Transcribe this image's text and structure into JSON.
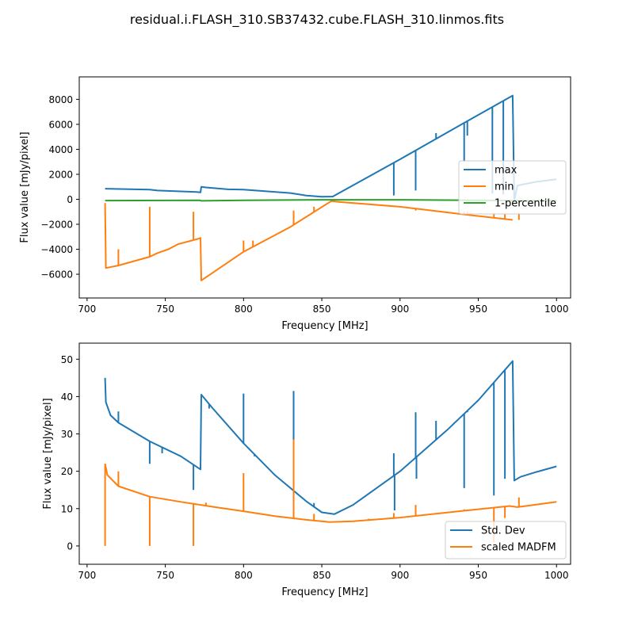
{
  "figure": {
    "title": "residual.i.FLASH_310.SB37432.cube.FLASH_310.linmos.fits"
  },
  "colors": {
    "blue": "#1f77b4",
    "orange": "#ff7f0e",
    "green": "#2ca02c"
  },
  "chart_data": [
    {
      "type": "line",
      "xlabel": "Frequency [MHz]",
      "ylabel": "Flux value [mJy/pixel]",
      "xlim": [
        695,
        1009
      ],
      "ylim": [
        -7900,
        9800
      ],
      "xticks": [
        700,
        750,
        800,
        850,
        900,
        950,
        1000
      ],
      "yticks": [
        -6000,
        -4000,
        -2000,
        0,
        2000,
        4000,
        6000,
        8000
      ],
      "legend": "center-right",
      "series": [
        {
          "name": "max",
          "color": "#1f77b4",
          "points": [
            [
              711.5,
              850
            ],
            [
              740,
              780
            ],
            [
              745,
              700
            ],
            [
              770,
              580
            ],
            [
              772.5,
              550
            ],
            [
              773,
              1000
            ],
            [
              776,
              950
            ],
            [
              790,
              800
            ],
            [
              800,
              780
            ],
            [
              830,
              500
            ],
            [
              840,
              300
            ],
            [
              850,
              200
            ],
            [
              857,
              220
            ],
            [
              900,
              3200
            ],
            [
              940,
              6050
            ],
            [
              972,
              8300
            ],
            [
              973,
              -100
            ],
            [
              975,
              1100
            ],
            [
              987,
              1400
            ],
            [
              1000,
              1600
            ]
          ],
          "spikes": [
            [
              896,
              300
            ],
            [
              910,
              700
            ],
            [
              923,
              5300
            ],
            [
              941,
              3000
            ],
            [
              943,
              5100
            ],
            [
              959,
              450
            ],
            [
              966,
              400
            ]
          ]
        },
        {
          "name": "min",
          "color": "#ff7f0e",
          "points": [
            [
              711.5,
              -300
            ],
            [
              712,
              -5500
            ],
            [
              720,
              -5300
            ],
            [
              740,
              -4600
            ],
            [
              745,
              -4300
            ],
            [
              752,
              -4000
            ],
            [
              758,
              -3600
            ],
            [
              770,
              -3200
            ],
            [
              772.5,
              -3100
            ],
            [
              773,
              -6500
            ],
            [
              800,
              -4200
            ],
            [
              830,
              -2200
            ],
            [
              856,
              -150
            ],
            [
              860,
              -200
            ],
            [
              900,
              -600
            ],
            [
              940,
              -1200
            ],
            [
              972,
              -1650
            ]
          ],
          "spikes": [
            [
              720,
              -4000
            ],
            [
              740,
              -600
            ],
            [
              768,
              -1000
            ],
            [
              800,
              -3300
            ],
            [
              806,
              -3300
            ],
            [
              832,
              -900
            ],
            [
              845,
              -600
            ],
            [
              896,
              -600
            ],
            [
              910,
              -900
            ],
            [
              941,
              -1000
            ],
            [
              943,
              -1000
            ],
            [
              960,
              -1100
            ],
            [
              967,
              -1200
            ],
            [
              976,
              -1100
            ]
          ]
        },
        {
          "name": "1-percentile",
          "color": "#2ca02c",
          "points": [
            [
              711.5,
              -100
            ],
            [
              772,
              -80
            ],
            [
              773,
              -120
            ],
            [
              800,
              -80
            ],
            [
              850,
              -40
            ],
            [
              900,
              -40
            ],
            [
              972,
              -100
            ],
            [
              1000,
              -110
            ]
          ],
          "spikes": []
        }
      ]
    },
    {
      "type": "line",
      "xlabel": "Frequency [MHz]",
      "ylabel": "Flux value [mJy/pixel]",
      "xlim": [
        695,
        1009
      ],
      "ylim": [
        -4.9,
        54.3
      ],
      "xticks": [
        700,
        750,
        800,
        850,
        900,
        950,
        1000
      ],
      "yticks": [
        0,
        10,
        20,
        30,
        40,
        50
      ],
      "legend": "bottom-right",
      "series": [
        {
          "name": "Std. Dev",
          "color": "#1f77b4",
          "points": [
            [
              711.5,
              45
            ],
            [
              712,
              38.5
            ],
            [
              715,
              35
            ],
            [
              720,
              33
            ],
            [
              740,
              28
            ],
            [
              760,
              24
            ],
            [
              772.5,
              20.5
            ],
            [
              773,
              40.5
            ],
            [
              780,
              37
            ],
            [
              800,
              27.5
            ],
            [
              820,
              19
            ],
            [
              840,
              12
            ],
            [
              850,
              9
            ],
            [
              858,
              8.5
            ],
            [
              870,
              11
            ],
            [
              900,
              20
            ],
            [
              930,
              31
            ],
            [
              950,
              39
            ],
            [
              972,
              49.5
            ],
            [
              973,
              17.5
            ],
            [
              977,
              18.5
            ],
            [
              987,
              19.8
            ],
            [
              1000,
              21.3
            ]
          ],
          "spikes": [
            [
              720,
              36
            ],
            [
              740,
              22
            ],
            [
              748,
              24.8
            ],
            [
              768,
              15
            ],
            [
              778,
              36.8
            ],
            [
              800,
              40.8
            ],
            [
              807,
              24
            ],
            [
              832,
              41.5
            ],
            [
              845,
              11.5
            ],
            [
              896,
              24.8
            ],
            [
              896.5,
              9.5
            ],
            [
              910,
              35.8
            ],
            [
              910.5,
              18
            ],
            [
              923,
              33.5
            ],
            [
              941,
              15.5
            ],
            [
              943,
              35.8
            ],
            [
              960,
              13.5
            ],
            [
              967,
              18
            ]
          ]
        },
        {
          "name": "scaled MADFM",
          "color": "#ff7f0e",
          "points": [
            [
              711.5,
              22
            ],
            [
              713,
              19
            ],
            [
              720,
              16
            ],
            [
              740,
              13.2
            ],
            [
              760,
              11.8
            ],
            [
              780,
              10.5
            ],
            [
              800,
              9.3
            ],
            [
              820,
              8
            ],
            [
              840,
              7
            ],
            [
              855,
              6.4
            ],
            [
              870,
              6.6
            ],
            [
              900,
              7.6
            ],
            [
              940,
              9.4
            ],
            [
              970,
              10.7
            ],
            [
              975,
              10.4
            ],
            [
              1000,
              11.8
            ]
          ],
          "spikes": [
            [
              711.5,
              0
            ],
            [
              720,
              20
            ],
            [
              740,
              0
            ],
            [
              768,
              0
            ],
            [
              776,
              11.6
            ],
            [
              800,
              19.5
            ],
            [
              832,
              28.5
            ],
            [
              845,
              8.6
            ],
            [
              880,
              7.3
            ],
            [
              896,
              8.8
            ],
            [
              910,
              11
            ],
            [
              941,
              9.8
            ],
            [
              960,
              1
            ],
            [
              967,
              7.5
            ],
            [
              976,
              13
            ]
          ]
        }
      ]
    }
  ]
}
